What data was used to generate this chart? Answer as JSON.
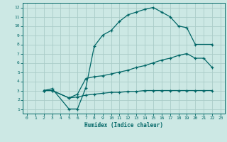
{
  "title": "",
  "xlabel": "Humidex (Indice chaleur)",
  "bg_color": "#cce8e4",
  "grid_color": "#aaccc8",
  "line_color": "#006666",
  "xlim": [
    -0.5,
    23.5
  ],
  "ylim": [
    0.5,
    12.5
  ],
  "xticks": [
    0,
    1,
    2,
    3,
    4,
    5,
    6,
    7,
    8,
    9,
    10,
    11,
    12,
    13,
    14,
    15,
    16,
    17,
    18,
    19,
    20,
    21,
    22,
    23
  ],
  "yticks": [
    1,
    2,
    3,
    4,
    5,
    6,
    7,
    8,
    9,
    10,
    11,
    12
  ],
  "line1_x": [
    2,
    3,
    5,
    6,
    7,
    8,
    9,
    10,
    11,
    12,
    13,
    14,
    15,
    16,
    17,
    18,
    19,
    20,
    22
  ],
  "line1_y": [
    3,
    3.2,
    1.0,
    1.0,
    3.3,
    7.8,
    9.0,
    9.5,
    10.5,
    11.2,
    11.5,
    11.8,
    12.0,
    11.5,
    11.0,
    10.0,
    9.8,
    8.0,
    8.0
  ],
  "line2_x": [
    2,
    3,
    5,
    6,
    7,
    8,
    9,
    10,
    11,
    12,
    13,
    14,
    15,
    16,
    17,
    18,
    19,
    20,
    21,
    22
  ],
  "line2_y": [
    3,
    3.0,
    2.2,
    2.6,
    4.3,
    4.5,
    4.6,
    4.8,
    5.0,
    5.2,
    5.5,
    5.7,
    6.0,
    6.3,
    6.5,
    6.8,
    7.0,
    6.5,
    6.5,
    5.5
  ],
  "line3_x": [
    2,
    3,
    5,
    6,
    7,
    8,
    9,
    10,
    11,
    12,
    13,
    14,
    15,
    16,
    17,
    18,
    19,
    20,
    21,
    22
  ],
  "line3_y": [
    3,
    3.0,
    2.2,
    2.3,
    2.5,
    2.6,
    2.7,
    2.8,
    2.8,
    2.9,
    2.9,
    3.0,
    3.0,
    3.0,
    3.0,
    3.0,
    3.0,
    3.0,
    3.0,
    3.0
  ]
}
